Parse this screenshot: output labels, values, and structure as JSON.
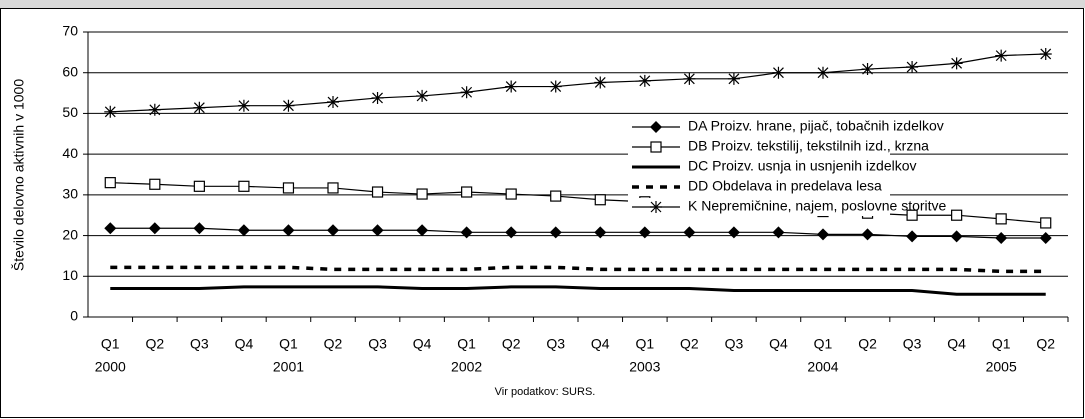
{
  "chart_data": {
    "type": "line",
    "y_label": "Število delovno aktivnih v 1000",
    "source": "Vir podatkov: SURS.",
    "categories": [
      "Q1",
      "Q2",
      "Q3",
      "Q4",
      "Q1",
      "Q2",
      "Q3",
      "Q4",
      "Q1",
      "Q2",
      "Q3",
      "Q4",
      "Q1",
      "Q2",
      "Q3",
      "Q4",
      "Q1",
      "Q2",
      "Q3",
      "Q4",
      "Q1",
      "Q2"
    ],
    "years": [
      "2000",
      null,
      null,
      null,
      "2001",
      null,
      null,
      null,
      "2002",
      null,
      null,
      null,
      "2003",
      null,
      null,
      null,
      "2004",
      null,
      null,
      null,
      "2005",
      null
    ],
    "ylim": [
      0,
      70
    ],
    "yticks": [
      0,
      10,
      20,
      30,
      40,
      50,
      60,
      70
    ],
    "grid": true,
    "series": [
      {
        "name": "DA Proizv. hrane, pijač, tobačnih izdelkov",
        "color": "#000000",
        "marker": "diamond",
        "style": "thin",
        "values": [
          21.8,
          21.8,
          21.8,
          21.3,
          21.3,
          21.3,
          21.3,
          21.3,
          20.8,
          20.8,
          20.8,
          20.8,
          20.8,
          20.8,
          20.8,
          20.8,
          20.3,
          20.3,
          19.8,
          19.8,
          19.4,
          19.4
        ]
      },
      {
        "name": "DB Proizv. tekstilij, tekstilnih izd., krzna",
        "color": "#000000",
        "marker": "square",
        "style": "thin",
        "values": [
          33,
          32.6,
          32.1,
          32.1,
          31.7,
          31.7,
          30.7,
          30.2,
          30.7,
          30.2,
          29.7,
          28.8,
          28.3,
          27.3,
          26.8,
          26.4,
          25.9,
          25.5,
          25,
          25,
          24.1,
          23.1
        ]
      },
      {
        "name": "DC Proizv. usnja in usnjenih izdelkov",
        "color": "#000000",
        "marker": null,
        "style": "thick",
        "values": [
          7,
          7,
          7,
          7.4,
          7.4,
          7.4,
          7.4,
          7,
          7,
          7.4,
          7.4,
          7,
          7,
          7,
          6.5,
          6.5,
          6.5,
          6.5,
          6.5,
          5.6,
          5.6,
          5.6
        ]
      },
      {
        "name": "DD Obdelava in predelava lesa",
        "color": "#000000",
        "marker": null,
        "style": "dashed",
        "values": [
          12.2,
          12.2,
          12.2,
          12.2,
          12.2,
          11.7,
          11.7,
          11.7,
          11.7,
          12.2,
          12.2,
          11.7,
          11.7,
          11.7,
          11.7,
          11.7,
          11.7,
          11.7,
          11.7,
          11.7,
          11.2,
          11.2
        ]
      },
      {
        "name": "K Nepremičnine, najem, poslovne storitve",
        "color": "#000000",
        "marker": "star",
        "style": "thin",
        "values": [
          50.4,
          50.9,
          51.4,
          51.9,
          51.9,
          52.8,
          53.8,
          54.3,
          55.2,
          56.6,
          56.6,
          57.6,
          58,
          58.5,
          58.5,
          60,
          60,
          60.9,
          61.4,
          62.3,
          64.2,
          64.6
        ]
      }
    ]
  }
}
